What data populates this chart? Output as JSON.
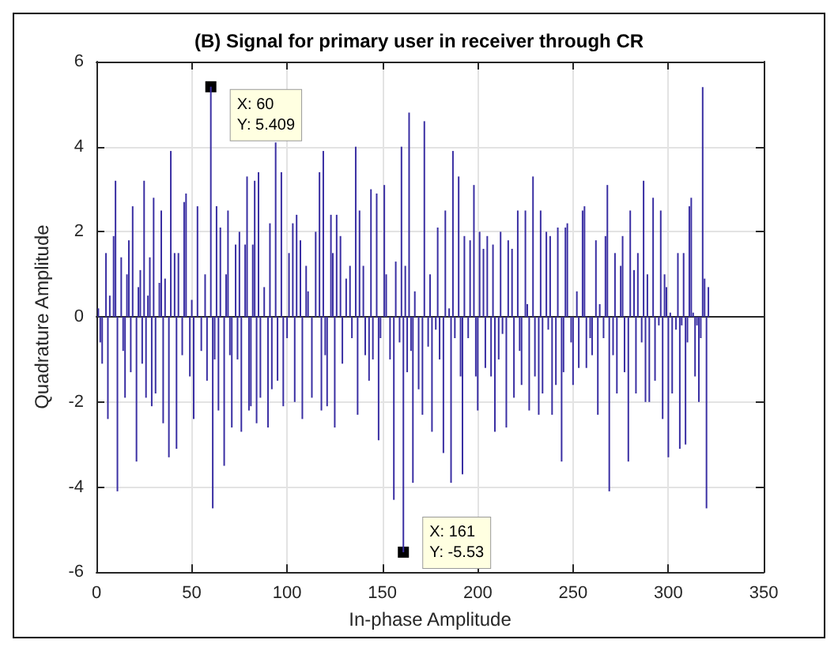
{
  "chart_data": {
    "type": "bar",
    "title": "(B) Signal for primary user in receiver through CR",
    "xlabel": "In-phase Amplitude",
    "ylabel": "Quadrature Amplitude",
    "color": "#3a2fa3",
    "marker": "none",
    "grid": true,
    "xlim": [
      0,
      350
    ],
    "xticks": [
      0,
      50,
      100,
      150,
      200,
      250,
      300,
      350
    ],
    "ylim": [
      -6,
      6
    ],
    "yticks": [
      -6,
      -4,
      -2,
      0,
      2,
      4,
      6
    ],
    "x": [
      1,
      2,
      3,
      5,
      6,
      7,
      9,
      10,
      11,
      13,
      14,
      15,
      16,
      17,
      18,
      19,
      21,
      22,
      23,
      24,
      25,
      26,
      27,
      28,
      29,
      30,
      31,
      33,
      34,
      35,
      36,
      38,
      39,
      41,
      42,
      43,
      45,
      46,
      47,
      49,
      50,
      51,
      53,
      55,
      57,
      58,
      60,
      61,
      62,
      63,
      64,
      65,
      67,
      68,
      69,
      70,
      71,
      73,
      74,
      75,
      76,
      78,
      79,
      80,
      81,
      82,
      83,
      84,
      85,
      86,
      88,
      90,
      91,
      92,
      94,
      95,
      97,
      98,
      100,
      101,
      103,
      104,
      105,
      107,
      108,
      110,
      111,
      113,
      115,
      117,
      118,
      119,
      120,
      121,
      123,
      124,
      125,
      126,
      128,
      129,
      131,
      133,
      134,
      136,
      137,
      138,
      140,
      141,
      143,
      144,
      145,
      147,
      148,
      149,
      151,
      152,
      154,
      156,
      157,
      159,
      160,
      161,
      162,
      163,
      164,
      165,
      166,
      167,
      169,
      171,
      172,
      174,
      175,
      176,
      178,
      179,
      180,
      182,
      183,
      185,
      186,
      187,
      188,
      190,
      191,
      192,
      193,
      195,
      196,
      198,
      199,
      200,
      201,
      203,
      204,
      205,
      207,
      208,
      209,
      211,
      212,
      213,
      215,
      216,
      218,
      219,
      221,
      222,
      223,
      225,
      226,
      227,
      229,
      230,
      232,
      233,
      234,
      236,
      237,
      238,
      239,
      241,
      242,
      244,
      245,
      246,
      247,
      249,
      250,
      252,
      253,
      255,
      256,
      257,
      259,
      260,
      262,
      263,
      264,
      266,
      267,
      268,
      269,
      271,
      272,
      273,
      275,
      276,
      277,
      279,
      280,
      282,
      283,
      284,
      286,
      287,
      288,
      289,
      290,
      292,
      293,
      295,
      296,
      297,
      298,
      299,
      300,
      301,
      302,
      304,
      305,
      306,
      307,
      308,
      309,
      310,
      311,
      312,
      313,
      314,
      315,
      316,
      317,
      318,
      319,
      320,
      321
    ],
    "values": [
      0.2,
      -0.6,
      -1.1,
      1.5,
      -2.4,
      0.5,
      1.9,
      3.2,
      -4.1,
      1.4,
      -0.8,
      -1.9,
      1.0,
      1.8,
      -1.3,
      2.6,
      -3.4,
      0.7,
      1.1,
      -1.1,
      3.2,
      -1.9,
      0.5,
      1.4,
      -2.1,
      2.8,
      -1.8,
      0.8,
      2.5,
      -2.5,
      0.9,
      -3.3,
      3.9,
      1.5,
      -3.1,
      1.5,
      -0.9,
      2.7,
      2.9,
      -1.4,
      0.4,
      -2.4,
      2.6,
      -0.8,
      1.0,
      -1.5,
      5.409,
      -4.5,
      -1.0,
      2.6,
      -2.2,
      2.1,
      -3.5,
      1.0,
      2.5,
      -0.9,
      -2.6,
      1.7,
      -1.0,
      2.0,
      -2.7,
      1.7,
      3.3,
      -2.2,
      -2.1,
      1.7,
      3.2,
      -2.5,
      3.4,
      -1.9,
      0.7,
      -2.6,
      2.2,
      -1.7,
      4.1,
      -1.5,
      3.4,
      -2.1,
      -0.5,
      1.5,
      2.2,
      -2.0,
      2.4,
      1.8,
      -2.4,
      1.2,
      0.6,
      -1.9,
      2.0,
      3.4,
      -2.2,
      3.9,
      -0.9,
      -2.1,
      2.4,
      1.5,
      -2.6,
      2.4,
      1.9,
      -1.1,
      0.9,
      1.2,
      -0.5,
      4.0,
      -2.3,
      2.5,
      1.2,
      -0.9,
      -1.5,
      3.0,
      -1.0,
      2.9,
      -2.9,
      -0.5,
      3.1,
      1.0,
      -1.0,
      -4.3,
      1.3,
      -0.6,
      4.0,
      -5.53,
      1.2,
      -1.3,
      4.8,
      -0.8,
      -3.9,
      0.6,
      -1.7,
      -2.3,
      4.6,
      -0.7,
      1.0,
      -2.7,
      -0.3,
      2.1,
      -1.0,
      -3.2,
      2.5,
      0.2,
      -3.9,
      3.9,
      -0.5,
      3.3,
      -1.4,
      -3.7,
      1.9,
      -0.5,
      1.8,
      3.1,
      -1.4,
      -2.2,
      2.0,
      1.6,
      -1.2,
      1.9,
      -1.4,
      1.7,
      -2.7,
      -1.0,
      2.0,
      -0.4,
      -2.6,
      1.8,
      1.6,
      -1.9,
      2.5,
      -0.8,
      -1.6,
      2.5,
      0.3,
      -2.2,
      3.3,
      -1.4,
      -2.3,
      2.5,
      -1.8,
      2.0,
      -0.3,
      1.9,
      -2.3,
      -1.6,
      2.1,
      -3.4,
      -1.3,
      2.1,
      2.2,
      -0.6,
      -1.6,
      0.6,
      -1.2,
      2.5,
      2.6,
      -1.2,
      -0.5,
      -0.9,
      1.8,
      -2.3,
      0.3,
      -0.5,
      1.9,
      3.1,
      -4.1,
      -0.9,
      1.5,
      -1.8,
      1.2,
      1.9,
      -1.3,
      -3.4,
      2.5,
      1.1,
      -1.8,
      1.5,
      -0.6,
      3.2,
      -2.0,
      1.0,
      -2.0,
      2.8,
      -1.5,
      -0.2,
      2.5,
      -2.4,
      1.0,
      0.7,
      -3.3,
      0.1,
      -1.8,
      -0.3,
      1.5,
      -3.1,
      -0.2,
      1.5,
      -3.0,
      -0.6,
      2.6,
      2.8,
      0.1,
      -1.4,
      -0.2,
      -2.0,
      -0.5,
      5.4,
      0.9,
      -4.5,
      0.7
    ],
    "annotations": [
      {
        "text": "X: 60\nY: 5.409",
        "x": 60,
        "y": 5.409
      },
      {
        "text": "X: 161\nY: -5.53",
        "x": 161,
        "y": -5.53
      }
    ]
  }
}
